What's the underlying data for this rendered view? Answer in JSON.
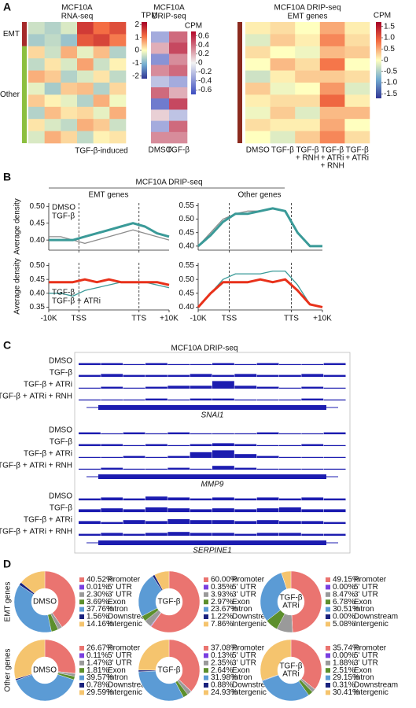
{
  "panel_labels": [
    "A",
    "B",
    "C",
    "D"
  ],
  "panel_b": {
    "title": "MCF10A DRIP-seq",
    "col_titles": [
      "EMT genes",
      "Other genes"
    ]
  },
  "pie_rows": [
    "EMT genes",
    "Other genes"
  ],
  "tracks": {
    "title": "MCF10A DRIP-seq",
    "color": "#1c1cb0",
    "ylim": [
      0,
      10
    ],
    "loci": [
      {
        "gene": "SNAI1",
        "samples": [
          "DMSO",
          "TGF-β",
          "TGF-β + ATRi",
          "TGF-β + ATRi + RNH"
        ],
        "signal": [
          [
            2,
            2,
            1,
            2,
            1,
            1,
            2,
            1,
            2,
            1,
            1,
            2
          ],
          [
            2,
            3,
            2,
            2,
            2,
            3,
            2,
            3,
            2,
            2,
            3,
            2
          ],
          [
            1,
            2,
            1,
            2,
            3,
            3,
            8,
            3,
            2,
            1,
            2,
            1
          ],
          [
            1,
            1,
            1,
            2,
            1,
            2,
            2,
            1,
            1,
            1,
            2,
            1
          ]
        ]
      },
      {
        "gene": "MMP9",
        "samples": [
          "DMSO",
          "TGF-β",
          "TGF-β + ATRi",
          "TGF-β + ATRi + RNH"
        ],
        "signal": [
          [
            2,
            1,
            2,
            1,
            2,
            1,
            1,
            1,
            2,
            1,
            1,
            2
          ],
          [
            2,
            2,
            1,
            2,
            1,
            2,
            3,
            2,
            1,
            1,
            2,
            1
          ],
          [
            1,
            1,
            2,
            1,
            2,
            6,
            8,
            4,
            2,
            1,
            1,
            1
          ],
          [
            1,
            2,
            1,
            1,
            2,
            1,
            4,
            2,
            1,
            1,
            1,
            1
          ]
        ]
      },
      {
        "gene": "SERPINE1",
        "samples": [
          "DMSO",
          "TGF-β",
          "TGF-β + ATRi",
          "TGF-β + ATRi + RNH"
        ],
        "signal": [
          [
            2,
            3,
            2,
            4,
            3,
            2,
            3,
            2,
            3,
            2,
            3,
            2
          ],
          [
            3,
            4,
            3,
            5,
            4,
            3,
            4,
            3,
            4,
            5,
            3,
            3
          ],
          [
            3,
            2,
            4,
            3,
            5,
            4,
            4,
            3,
            4,
            3,
            3,
            2
          ],
          [
            2,
            3,
            2,
            3,
            4,
            3,
            3,
            2,
            3,
            3,
            2,
            2
          ]
        ]
      }
    ]
  },
  "chart_data": [
    {
      "type": "heatmap",
      "title": [
        "MCF10A",
        "RNA-seq"
      ],
      "colorbar_label": "TPM",
      "clim": [
        -2.2,
        2.2
      ],
      "cticks": [
        2,
        1,
        0,
        -1,
        -2
      ],
      "colormap": [
        "#313695",
        "#74add1",
        "#ffffbf",
        "#f46d43",
        "#a50026"
      ],
      "groups": [
        {
          "label": "EMT",
          "color": "#a52a2a",
          "rows": 2
        },
        {
          "label": "Other",
          "color": "#8cbf3f",
          "rows": 8
        }
      ],
      "x_label": "TGF-β-induced",
      "values": [
        [
          -0.4,
          -0.6,
          -0.3,
          1.6,
          1.1,
          1.4
        ],
        [
          -0.7,
          -0.5,
          -0.8,
          1.3,
          1.5,
          1.0
        ],
        [
          0.3,
          -0.4,
          0.6,
          -0.2,
          0.5,
          -0.6
        ],
        [
          -0.5,
          0.2,
          -0.3,
          0.7,
          -0.4,
          0.1
        ],
        [
          0.6,
          0.4,
          -0.6,
          -0.3,
          0.2,
          -0.5
        ],
        [
          -0.2,
          -0.7,
          0.4,
          0.5,
          -0.6,
          0.3
        ],
        [
          0.4,
          0.1,
          -0.2,
          -0.6,
          0.6,
          -0.1
        ],
        [
          -0.6,
          0.5,
          0.2,
          0.3,
          -0.2,
          0.6
        ],
        [
          0.2,
          -0.3,
          -0.5,
          0.6,
          0.4,
          -0.4
        ],
        [
          -0.3,
          0.6,
          0.3,
          -0.5,
          0.1,
          0.2
        ]
      ]
    },
    {
      "type": "heatmap",
      "title": [
        "MCF10A",
        "DRIP-seq"
      ],
      "colorbar_label": "CPM",
      "clim": [
        -0.7,
        0.7
      ],
      "cticks": [
        0.6,
        0.4,
        0.2,
        0,
        -0.2,
        -0.4,
        -0.6
      ],
      "colormap": [
        "#3b4cc0",
        "#f2f2f2",
        "#b40426"
      ],
      "col_labels": [
        "DMSO",
        "TGF-β"
      ],
      "values": [
        [
          -0.3,
          0.4
        ],
        [
          0.2,
          0.5
        ],
        [
          -0.4,
          0.3
        ],
        [
          0.3,
          0.4
        ],
        [
          -0.2,
          -0.3
        ],
        [
          0.4,
          0.2
        ],
        [
          -0.5,
          0.5
        ],
        [
          0.1,
          -0.2
        ],
        [
          -0.3,
          0.4
        ],
        [
          0.3,
          0.3
        ]
      ]
    },
    {
      "type": "heatmap",
      "title": [
        "MCF10A DRIP-seq",
        "EMT genes"
      ],
      "colorbar_label": "CPM",
      "clim": [
        -1.7,
        1.7
      ],
      "cticks": [
        1.5,
        {
          "value": 1,
          "label": "1.0"
        },
        0.5,
        0,
        -0.5,
        {
          "value": -1,
          "label": "-1.0"
        },
        -1.5
      ],
      "colormap": [
        "#313695",
        "#74add1",
        "#ffffbf",
        "#f46d43",
        "#a50026"
      ],
      "groups": [
        {
          "color": "#8b2a1e",
          "rows": 10
        }
      ],
      "col_labels": [
        "DMSO",
        "TGF-β",
        [
          "TGF-β",
          "+ RNH"
        ],
        [
          "TGF-β",
          "+ ATRi",
          "+ RNH"
        ],
        [
          "TGF-β",
          "+ ATRi"
        ]
      ],
      "values": [
        [
          0.1,
          0.2,
          0.0,
          0.5,
          0.1
        ],
        [
          -0.2,
          0.3,
          0.1,
          0.7,
          0.2
        ],
        [
          0.2,
          0.0,
          -0.1,
          0.4,
          0.3
        ],
        [
          0.0,
          0.4,
          0.2,
          0.8,
          0.0
        ],
        [
          -0.3,
          0.1,
          0.3,
          0.3,
          0.2
        ],
        [
          0.3,
          -0.1,
          0.0,
          0.6,
          -0.2
        ],
        [
          0.1,
          0.2,
          0.2,
          0.9,
          0.1
        ],
        [
          -0.1,
          0.3,
          -0.2,
          0.4,
          0.4
        ],
        [
          0.2,
          0.1,
          0.1,
          0.5,
          0.0
        ],
        [
          0.0,
          -0.2,
          0.3,
          0.7,
          0.2
        ]
      ]
    },
    {
      "type": "line",
      "ylabel": "Average density",
      "legend": "upper left",
      "xtick_labels": false,
      "x": [
        0,
        4,
        8,
        12,
        16,
        20,
        24,
        28,
        32,
        36,
        40
      ],
      "xlim": [
        0,
        40
      ],
      "xticks": [
        10,
        30
      ],
      "ylim": [
        0.37,
        0.51
      ],
      "yticks": [
        {
          "value": 0.4,
          "label": "0.40"
        },
        0.45,
        {
          "value": 0.5,
          "label": "0.50"
        }
      ],
      "series": [
        {
          "name": "DMSO",
          "color": "#8c8c8c",
          "values": [
            0.41,
            0.41,
            0.4,
            0.39,
            0.4,
            0.41,
            0.42,
            0.43,
            0.42,
            0.41,
            0.4
          ]
        },
        {
          "name": "TGF-β",
          "color": "#3a9a98",
          "values": [
            0.4,
            0.4,
            0.4,
            0.41,
            0.42,
            0.43,
            0.44,
            0.45,
            0.44,
            0.42,
            0.41
          ]
        }
      ]
    },
    {
      "type": "line",
      "legend": "none",
      "xtick_labels": false,
      "x": [
        0,
        4,
        8,
        12,
        16,
        20,
        24,
        28,
        32,
        36,
        40
      ],
      "xlim": [
        0,
        40
      ],
      "xticks": [
        10,
        30
      ],
      "ylim": [
        0.385,
        0.56
      ],
      "yticks": [
        {
          "value": 0.4,
          "label": "0.40"
        },
        0.45,
        {
          "value": 0.5,
          "label": "0.50"
        },
        0.55
      ],
      "series": [
        {
          "name": "DMSO",
          "color": "#8c8c8c",
          "values": [
            0.4,
            0.45,
            0.5,
            0.52,
            0.53,
            0.53,
            0.54,
            0.53,
            0.45,
            0.4,
            0.4
          ]
        },
        {
          "name": "TGF-β",
          "color": "#3a9a98",
          "values": [
            0.4,
            0.44,
            0.49,
            0.52,
            0.52,
            0.53,
            0.54,
            0.53,
            0.45,
            0.4,
            0.4
          ]
        }
      ]
    },
    {
      "type": "line",
      "ylabel": "Average density",
      "legend": "lower left",
      "xtick_labels": true,
      "x": [
        0,
        4,
        8,
        12,
        16,
        20,
        24,
        28,
        32,
        36,
        40
      ],
      "xlim": [
        0,
        40
      ],
      "xticks": [
        {
          "value": 0,
          "label": "-10K"
        },
        {
          "value": 10,
          "label": "TSS"
        },
        {
          "value": 30,
          "label": "TTS"
        },
        {
          "value": 40,
          "label": "+10K"
        }
      ],
      "ylim": [
        0.34,
        0.51
      ],
      "yticks": [
        0.35,
        {
          "value": 0.4,
          "label": "0.40"
        },
        0.45,
        {
          "value": 0.5,
          "label": "0.50"
        }
      ],
      "series": [
        {
          "name": "TGF-β",
          "color": "#3a9a98",
          "values": [
            0.4,
            0.4,
            0.39,
            0.41,
            0.42,
            0.43,
            0.44,
            0.44,
            0.44,
            0.43,
            0.42
          ]
        },
        {
          "name": "TGF-β + ATRi",
          "color": "#e8311a",
          "values": [
            0.44,
            0.44,
            0.44,
            0.45,
            0.44,
            0.45,
            0.44,
            0.44,
            0.44,
            0.44,
            0.43
          ]
        }
      ]
    },
    {
      "type": "line",
      "legend": "none",
      "xtick_labels": true,
      "x": [
        0,
        4,
        8,
        12,
        16,
        20,
        24,
        28,
        32,
        36,
        40
      ],
      "xlim": [
        0,
        40
      ],
      "xticks": [
        {
          "value": 0,
          "label": "-10K"
        },
        {
          "value": 10,
          "label": "TSS"
        },
        {
          "value": 30,
          "label": "TTS"
        },
        {
          "value": 40,
          "label": "+10K"
        }
      ],
      "ylim": [
        0.39,
        0.56
      ],
      "yticks": [
        {
          "value": 0.4,
          "label": "0.40"
        },
        0.45,
        {
          "value": 0.5,
          "label": "0.50"
        },
        0.55
      ],
      "series": [
        {
          "name": "TGF-β",
          "color": "#3a9a98",
          "values": [
            0.4,
            0.45,
            0.5,
            0.52,
            0.52,
            0.52,
            0.53,
            0.53,
            0.48,
            0.41,
            0.4
          ]
        },
        {
          "name": "TGF-β + ATRi",
          "color": "#e8311a",
          "values": [
            0.4,
            0.45,
            0.49,
            0.49,
            0.49,
            0.5,
            0.49,
            0.5,
            0.46,
            0.41,
            0.4
          ]
        }
      ]
    },
    {
      "type": "pie",
      "center_label": [
        "DMSO"
      ],
      "categories": [
        "Promoter",
        "5' UTR",
        "3' UTR",
        "Exon",
        "Intron",
        "Downstream",
        "Intergenic"
      ],
      "colors": [
        "#ea7470",
        "#7a3fe0",
        "#9a9a9a",
        "#5c8f2c",
        "#5b9bd5",
        "#1a237e",
        "#f5c46e"
      ],
      "values": [
        40.52,
        0.01,
        2.3,
        3.69,
        37.76,
        1.56,
        14.16
      ],
      "value_labels": [
        "40.52%",
        "0.01%",
        "2.30%",
        "3.69%",
        "37.76%",
        "1.56%",
        "14.16%"
      ]
    },
    {
      "type": "pie",
      "center_label": [
        "TGF-β"
      ],
      "categories": [
        "Promoter",
        "5' UTR",
        "3' UTR",
        "Exon",
        "Intron",
        "Downstream",
        "Intergenic"
      ],
      "colors": [
        "#ea7470",
        "#7a3fe0",
        "#9a9a9a",
        "#5c8f2c",
        "#5b9bd5",
        "#1a237e",
        "#f5c46e"
      ],
      "values": [
        60.0,
        0.35,
        3.93,
        2.97,
        23.67,
        1.22,
        7.86
      ],
      "value_labels": [
        "60.00%",
        "0.35%",
        "3.93%",
        "2.97%",
        "23.67%",
        "1.22%",
        "7.86%"
      ]
    },
    {
      "type": "pie",
      "center_label": [
        "TGF-β",
        "ATRi"
      ],
      "categories": [
        "Promoter",
        "5' UTR",
        "3' UTR",
        "Exon",
        "Intron",
        "Downstream",
        "Intergenic"
      ],
      "colors": [
        "#ea7470",
        "#7a3fe0",
        "#9a9a9a",
        "#5c8f2c",
        "#5b9bd5",
        "#1a237e",
        "#f5c46e"
      ],
      "values": [
        49.15,
        0.0,
        8.47,
        6.78,
        30.51,
        0.0,
        5.08
      ],
      "value_labels": [
        "49.15%",
        "0.00%",
        "8.47%",
        "6.78%",
        "30.51%",
        "0.00%",
        "5.08%"
      ]
    },
    {
      "type": "pie",
      "center_label": [
        "DMSO"
      ],
      "categories": [
        "Promoter",
        "5' UTR",
        "3' UTR",
        "Exon",
        "Intron",
        "Downstream",
        "Intergenic"
      ],
      "colors": [
        "#ea7470",
        "#7a3fe0",
        "#9a9a9a",
        "#5c8f2c",
        "#5b9bd5",
        "#1a237e",
        "#f5c46e"
      ],
      "values": [
        26.67,
        0.11,
        1.47,
        1.81,
        39.57,
        0.78,
        29.59
      ],
      "value_labels": [
        "26.67%",
        "0.11%",
        "1.47%",
        "1.81%",
        "39.57%",
        "0.78%",
        "29.59%"
      ]
    },
    {
      "type": "pie",
      "center_label": [
        "TGF-β"
      ],
      "categories": [
        "Promoter",
        "5' UTR",
        "3' UTR",
        "Exon",
        "Intron",
        "Downstream",
        "Intergenic"
      ],
      "colors": [
        "#ea7470",
        "#7a3fe0",
        "#9a9a9a",
        "#5c8f2c",
        "#5b9bd5",
        "#1a237e",
        "#f5c46e"
      ],
      "values": [
        37.08,
        0.13,
        2.35,
        2.64,
        31.98,
        0.88,
        24.93
      ],
      "value_labels": [
        "37.08%",
        "0.13%",
        "2.35%",
        "2.64%",
        "31.98%",
        "0.88%",
        "24.93%"
      ]
    },
    {
      "type": "pie",
      "center_label": [
        "TGF-β",
        "ATRi"
      ],
      "categories": [
        "Promoter",
        "5' UTR",
        "3' UTR",
        "Exon",
        "Intron",
        "Downstream",
        "Intergenic"
      ],
      "colors": [
        "#ea7470",
        "#7a3fe0",
        "#9a9a9a",
        "#5c8f2c",
        "#5b9bd5",
        "#1a237e",
        "#f5c46e"
      ],
      "values": [
        35.74,
        0.0,
        1.88,
        2.51,
        29.15,
        0.31,
        30.41
      ],
      "value_labels": [
        "35.74%",
        "0.00%",
        "1.88%",
        "2.51%",
        "29.15%",
        "0.31%",
        "30.41%"
      ]
    }
  ]
}
